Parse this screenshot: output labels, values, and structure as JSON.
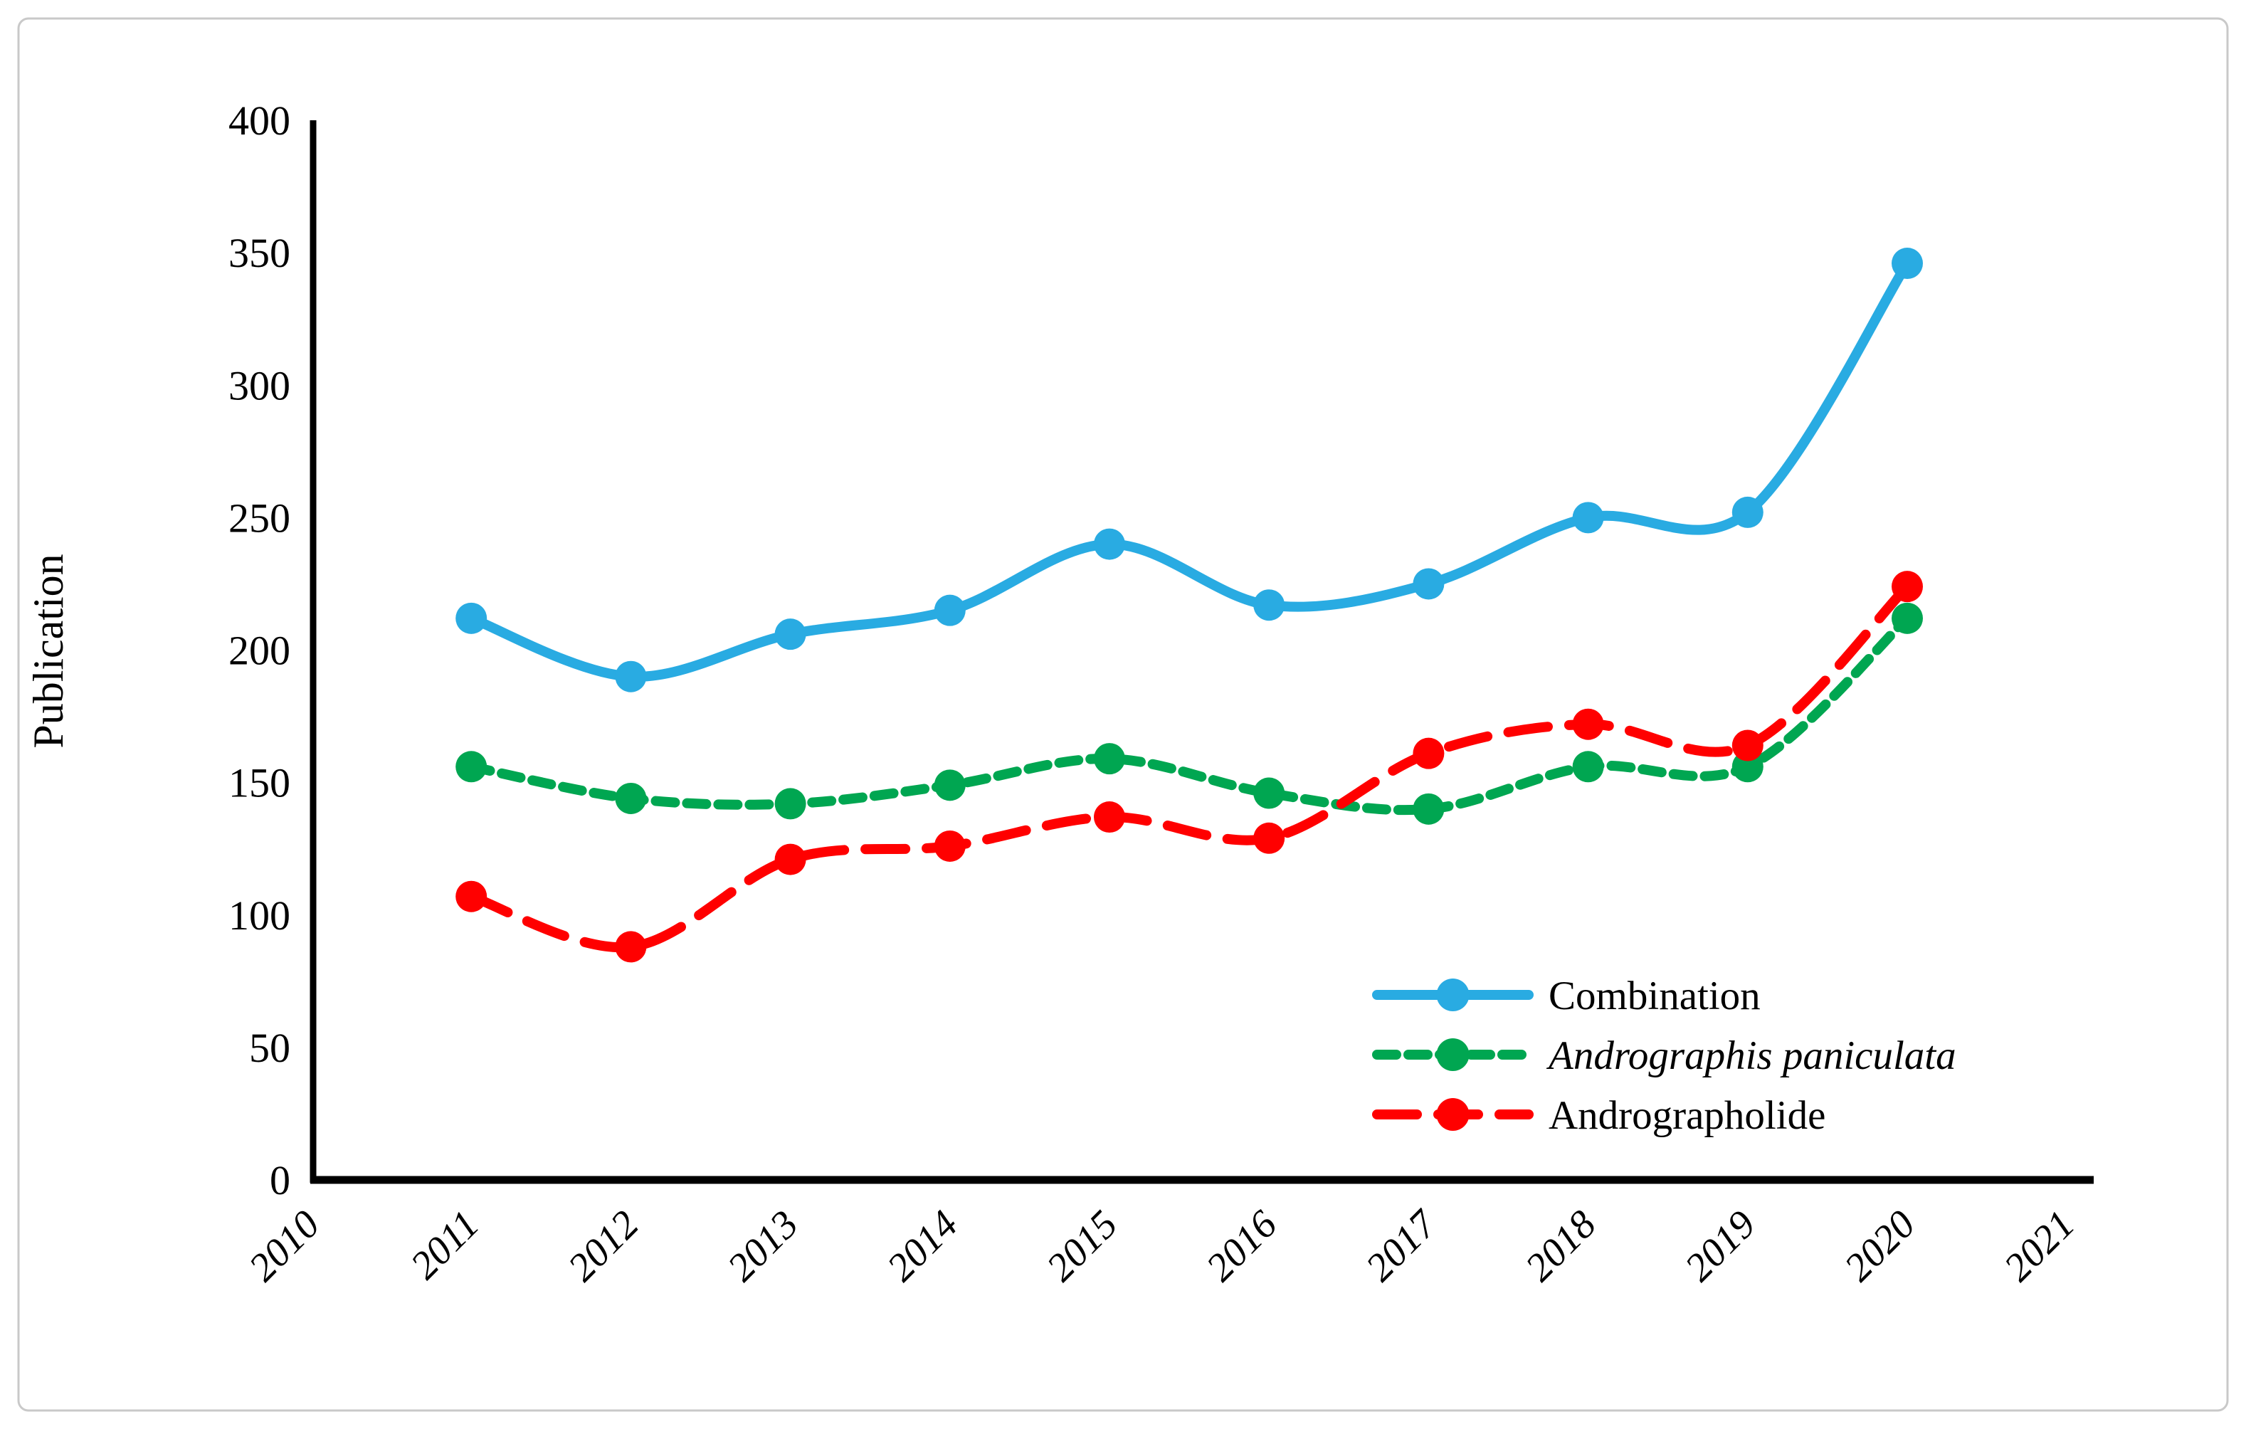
{
  "figure": {
    "background": "#ffffff",
    "border_color": "#c9c9c9"
  },
  "chart_data": {
    "type": "line",
    "title": "",
    "xlabel": "",
    "ylabel": "Publication",
    "ylim": [
      0,
      400
    ],
    "ytick_step": 50,
    "ytick_labels": [
      "0",
      "50",
      "100",
      "150",
      "200",
      "250",
      "300",
      "350",
      "400"
    ],
    "x_axis_categories": [
      "2010",
      "2011",
      "2012",
      "2013",
      "2014",
      "2015",
      "2016",
      "2017",
      "2018",
      "2019",
      "2020",
      "2021"
    ],
    "data_years": [
      "2011",
      "2012",
      "2013",
      "2014",
      "2015",
      "2016",
      "2017",
      "2018",
      "2019",
      "2020"
    ],
    "grid": false,
    "legend_position": "inside-bottom-right",
    "axis_color": "#000000",
    "series": [
      {
        "name": "Combination",
        "color": "#29ABE2",
        "line_style": "solid",
        "marker": "circle",
        "italic_label": false,
        "values": [
          212,
          190,
          206,
          215,
          240,
          217,
          225,
          250,
          252,
          346
        ]
      },
      {
        "name": "Andrographis paniculata",
        "color": "#00A651",
        "line_style": "short-dash",
        "marker": "circle",
        "italic_label": true,
        "values": [
          156,
          144,
          142,
          149,
          159,
          146,
          140,
          156,
          156,
          212
        ]
      },
      {
        "name": "Andrographolide",
        "color": "#FF0000",
        "line_style": "long-dash",
        "marker": "circle",
        "italic_label": false,
        "values": [
          107,
          88,
          121,
          126,
          137,
          129,
          161,
          172,
          164,
          224
        ]
      }
    ]
  }
}
